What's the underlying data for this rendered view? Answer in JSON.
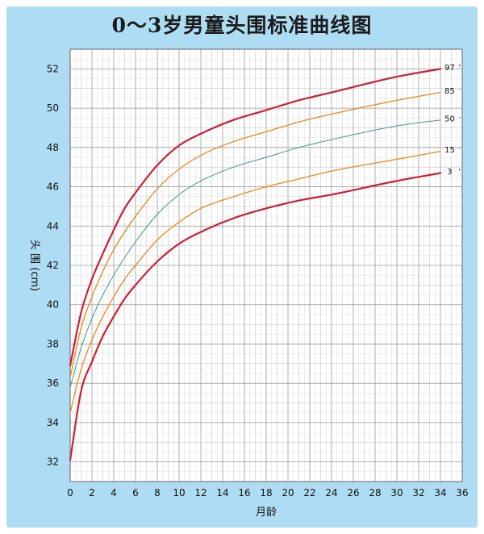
{
  "chart_data": {
    "type": "line",
    "title": "0～3岁男童头围标准曲线图",
    "xlabel": "月龄",
    "ylabel": "头 围 (cm)",
    "xlim": [
      0,
      36
    ],
    "ylim": [
      31,
      53
    ],
    "x_ticks": [
      0,
      2,
      4,
      6,
      8,
      10,
      12,
      14,
      16,
      18,
      20,
      22,
      24,
      26,
      28,
      30,
      32,
      34,
      36
    ],
    "y_ticks": [
      32,
      34,
      36,
      38,
      40,
      42,
      44,
      46,
      48,
      50,
      52
    ],
    "grid": true,
    "series": [
      {
        "name": "97",
        "color": "#cc1f36",
        "x": [
          0,
          1,
          2,
          3,
          4,
          5,
          6,
          8,
          10,
          12,
          15,
          18,
          21,
          24,
          30,
          34
        ],
        "y": [
          36.9,
          39.6,
          41.3,
          42.6,
          43.8,
          44.9,
          45.7,
          47.1,
          48.1,
          48.7,
          49.4,
          49.9,
          50.4,
          50.8,
          51.6,
          52.0
        ]
      },
      {
        "name": "85",
        "color": "#e8902a",
        "x": [
          0,
          1,
          2,
          3,
          4,
          5,
          6,
          8,
          10,
          12,
          15,
          18,
          21,
          24,
          30,
          34
        ],
        "y": [
          36.3,
          38.8,
          40.4,
          41.7,
          42.8,
          43.7,
          44.5,
          45.9,
          46.9,
          47.6,
          48.3,
          48.8,
          49.3,
          49.7,
          50.4,
          50.8
        ]
      },
      {
        "name": "50",
        "color": "#3a9a8a",
        "x": [
          0,
          1,
          2,
          3,
          4,
          5,
          6,
          8,
          10,
          12,
          15,
          18,
          21,
          24,
          30,
          34
        ],
        "y": [
          35.8,
          37.8,
          39.3,
          40.5,
          41.5,
          42.4,
          43.2,
          44.6,
          45.6,
          46.3,
          47.0,
          47.5,
          48.0,
          48.4,
          49.1,
          49.4
        ]
      },
      {
        "name": "15",
        "color": "#e8902a",
        "x": [
          0,
          1,
          2,
          3,
          4,
          5,
          6,
          8,
          10,
          12,
          15,
          18,
          21,
          24,
          30,
          34
        ],
        "y": [
          34.5,
          36.7,
          38.2,
          39.4,
          40.4,
          41.3,
          42.0,
          43.3,
          44.2,
          44.9,
          45.5,
          46.0,
          46.4,
          46.8,
          47.4,
          47.8
        ]
      },
      {
        "name": "3",
        "color": "#cc1f36",
        "x": [
          0,
          1,
          2,
          3,
          4,
          5,
          6,
          8,
          10,
          12,
          15,
          18,
          21,
          24,
          30,
          34
        ],
        "y": [
          32.1,
          35.6,
          37.1,
          38.4,
          39.4,
          40.3,
          41.0,
          42.2,
          43.1,
          43.7,
          44.4,
          44.9,
          45.3,
          45.6,
          46.3,
          46.7
        ]
      }
    ]
  }
}
